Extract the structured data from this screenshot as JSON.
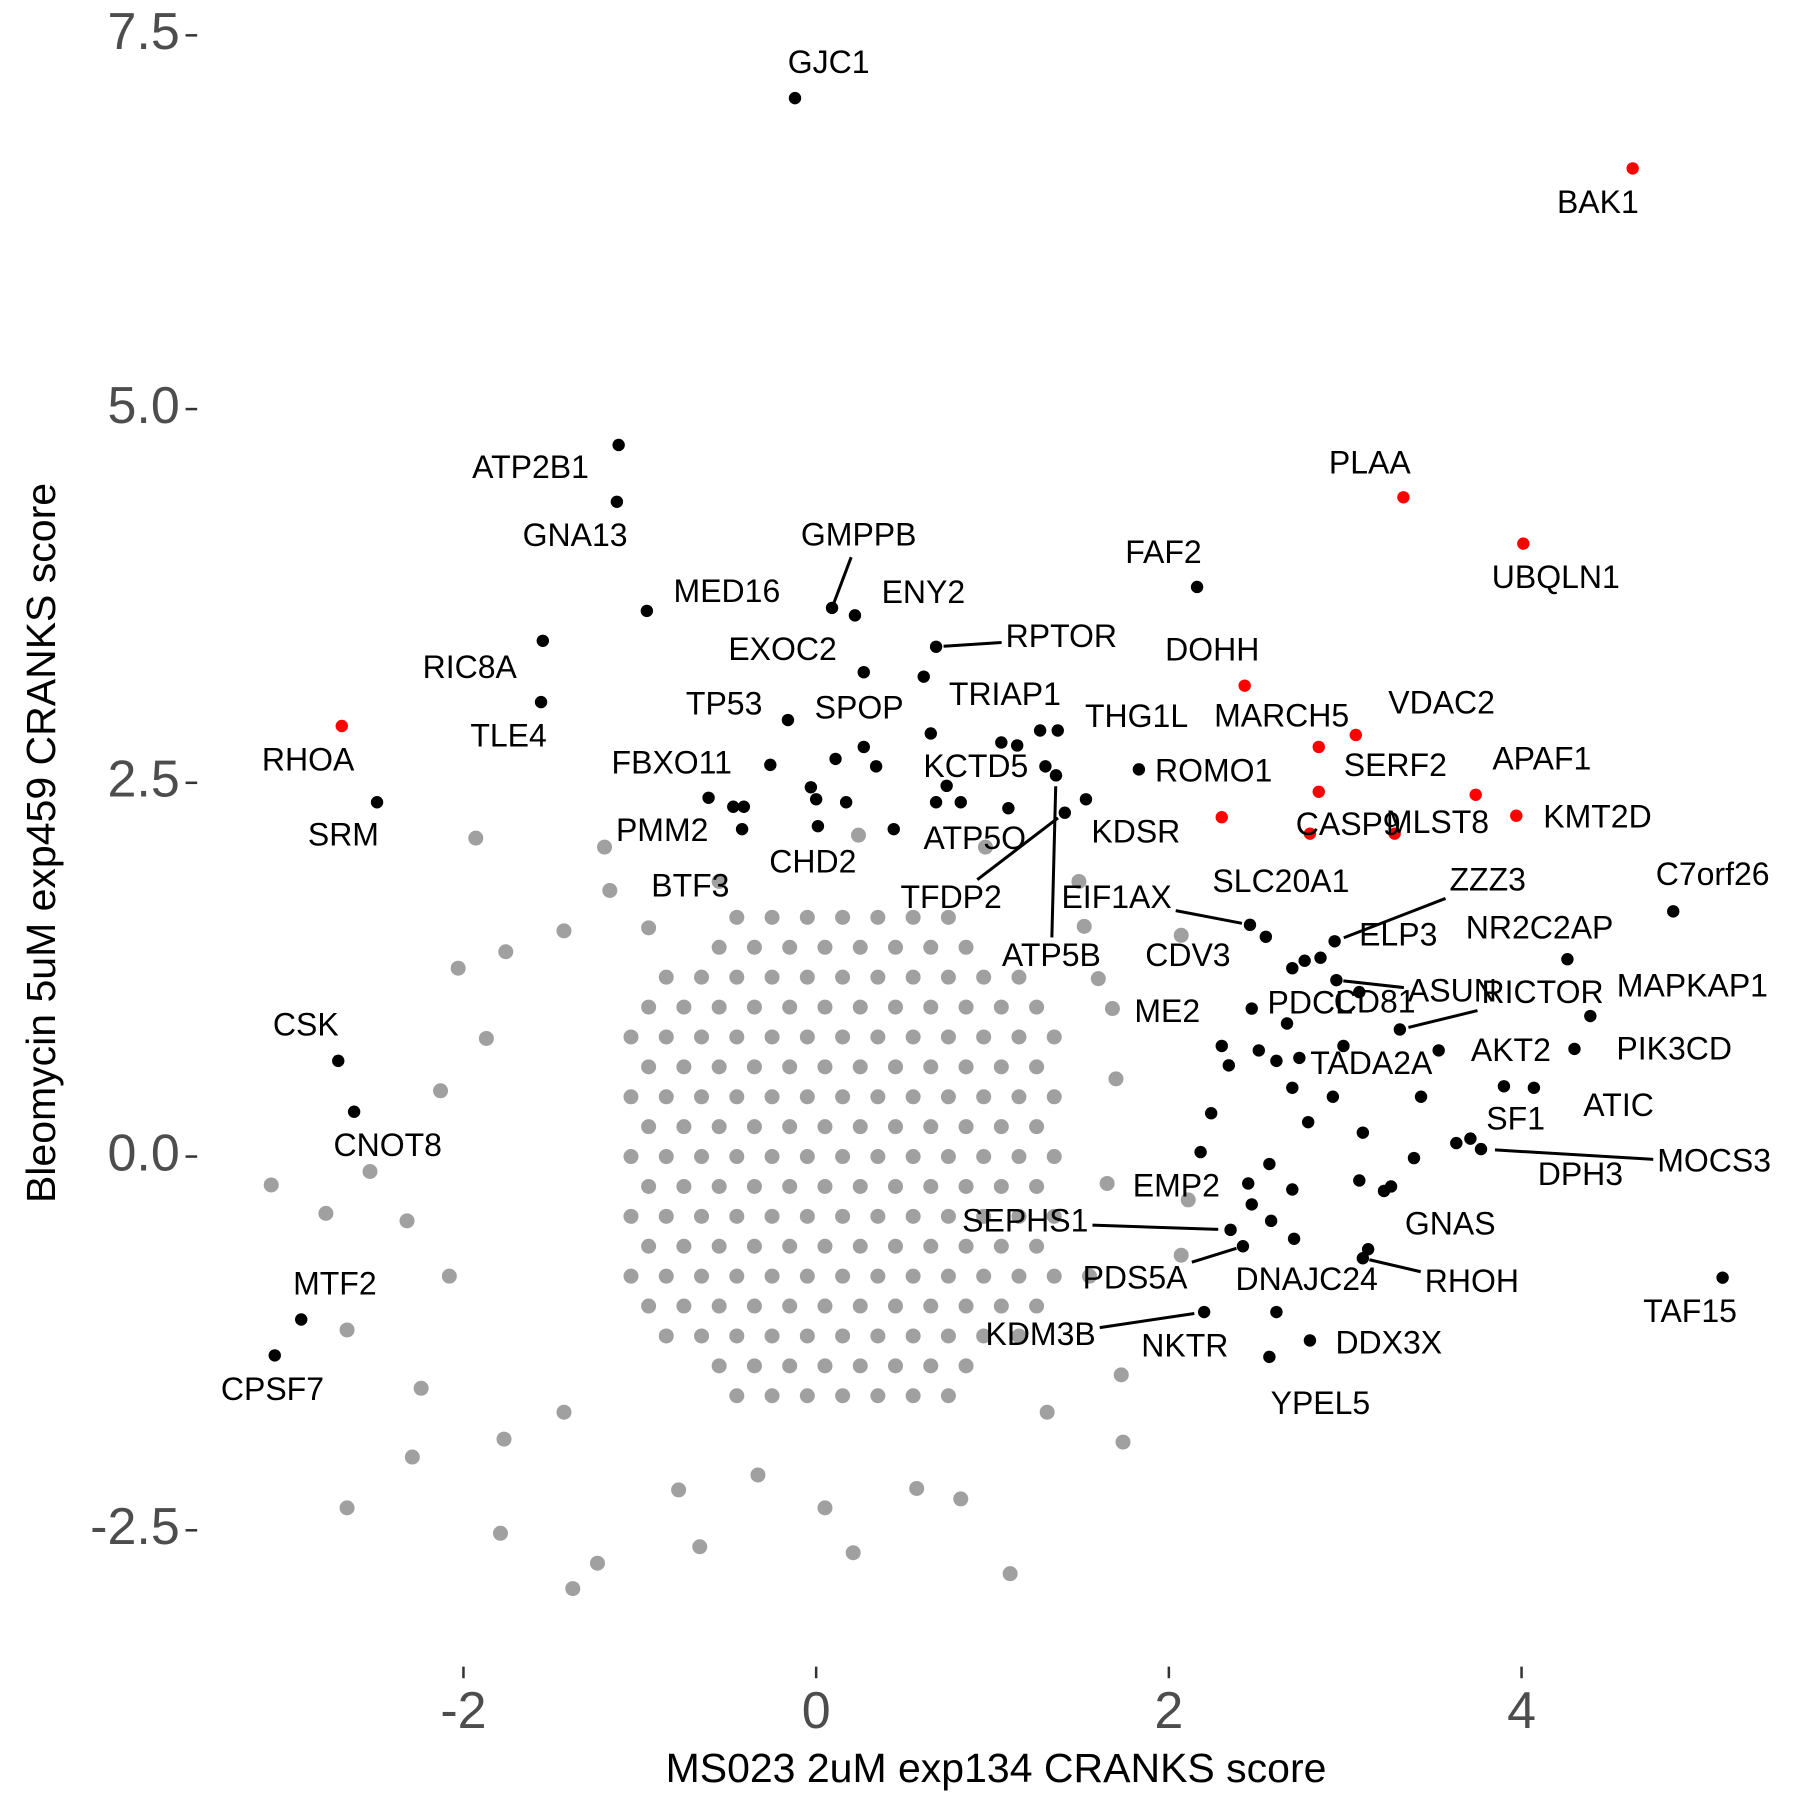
{
  "chart_data": {
    "type": "scatter",
    "x_label": "MS023 2uM exp134 CRANKS score",
    "y_label": "Bleomycin 5uM exp459 CRANKS score",
    "xlim": [
      -3.51,
      5.5
    ],
    "ylim": [
      -3.28,
      7.62
    ],
    "xticks": [
      -2,
      0,
      2,
      4
    ],
    "yticks": [
      -2.5,
      {
        "value": 0,
        "label": "0.0"
      },
      2.5,
      {
        "value": 5,
        "label": "5.0"
      },
      7.5
    ],
    "grid": false,
    "series": [
      {
        "color": "#a0a0a0",
        "x": [
          -0.45,
          -0.25,
          -0.05,
          0.15,
          0.35,
          0.55,
          0.75,
          -0.55,
          -0.35,
          -0.15,
          0.05,
          0.25,
          0.45,
          0.65,
          0.85,
          -0.85,
          -0.65,
          -0.45,
          -0.25,
          -0.05,
          0.15,
          0.35,
          0.55,
          0.75,
          0.95,
          1.15,
          -0.95,
          -0.75,
          -0.55,
          -0.35,
          -0.15,
          0.05,
          0.25,
          0.45,
          0.65,
          0.85,
          1.05,
          1.25,
          -1.05,
          -0.85,
          -0.65,
          -0.45,
          -0.25,
          -0.05,
          0.15,
          0.35,
          0.55,
          0.75,
          0.95,
          1.15,
          1.35,
          -0.95,
          -0.75,
          -0.55,
          -0.35,
          -0.15,
          0.05,
          0.25,
          0.45,
          0.65,
          0.85,
          1.05,
          1.25,
          -1.05,
          -0.85,
          -0.65,
          -0.45,
          -0.25,
          -0.05,
          0.15,
          0.35,
          0.55,
          0.75,
          0.95,
          1.15,
          1.35,
          -0.95,
          -0.75,
          -0.55,
          -0.35,
          -0.15,
          0.05,
          0.25,
          0.45,
          0.65,
          0.85,
          1.05,
          1.25,
          -1.05,
          -0.85,
          -0.65,
          -0.45,
          -0.25,
          -0.05,
          0.15,
          0.35,
          0.55,
          0.75,
          0.95,
          1.15,
          1.35,
          -0.95,
          -0.75,
          -0.55,
          -0.35,
          -0.15,
          0.05,
          0.25,
          0.45,
          0.65,
          0.85,
          1.05,
          1.25,
          -1.05,
          -0.85,
          -0.65,
          -0.45,
          -0.25,
          -0.05,
          0.15,
          0.35,
          0.55,
          0.75,
          0.95,
          1.15,
          1.35,
          -0.95,
          -0.75,
          -0.55,
          -0.35,
          -0.15,
          0.05,
          0.25,
          0.45,
          0.65,
          0.85,
          1.05,
          1.25,
          -1.05,
          -0.85,
          -0.65,
          -0.45,
          -0.25,
          -0.05,
          0.15,
          0.35,
          0.55,
          0.75,
          0.95,
          1.15,
          1.35,
          -0.95,
          -0.75,
          -0.55,
          -0.35,
          -0.15,
          0.05,
          0.25,
          0.45,
          0.65,
          0.85,
          1.05,
          1.25,
          -0.85,
          -0.65,
          -0.45,
          -0.25,
          -0.05,
          0.15,
          0.35,
          0.55,
          0.75,
          0.95,
          1.15,
          -0.55,
          -0.35,
          -0.15,
          0.05,
          0.25,
          0.45,
          0.65,
          0.85,
          -0.45,
          -0.25,
          -0.05,
          0.15,
          0.35,
          0.55,
          0.75,
          -1.93,
          -1.17,
          -1.43,
          -1.76,
          -2.03,
          -3.09,
          -2.78,
          -2.53,
          -2.66,
          -2.66,
          -2.29,
          -1.79,
          -1.38,
          -1.24,
          -0.66,
          0.21,
          1.1,
          0.82,
          1.74,
          1.73,
          2.07,
          2.11,
          2.07,
          1.6,
          1.52,
          -2.24,
          -2.08,
          -2.32,
          -2.13,
          -1.87,
          -1.43,
          -1.77,
          -0.78,
          -0.33,
          0.05,
          0.57,
          1.31,
          1.55,
          1.65,
          1.7,
          1.68,
          1.49,
          0.96,
          0.24,
          -0.55,
          -0.95,
          -1.2
        ],
        "values": [
          1.6,
          1.6,
          1.6,
          1.6,
          1.6,
          1.6,
          1.6,
          1.4,
          1.4,
          1.4,
          1.4,
          1.4,
          1.4,
          1.4,
          1.4,
          1.2,
          1.2,
          1.2,
          1.2,
          1.2,
          1.2,
          1.2,
          1.2,
          1.2,
          1.2,
          1.2,
          1.0,
          1.0,
          1.0,
          1.0,
          1.0,
          1.0,
          1.0,
          1.0,
          1.0,
          1.0,
          1.0,
          1.0,
          0.8,
          0.8,
          0.8,
          0.8,
          0.8,
          0.8,
          0.8,
          0.8,
          0.8,
          0.8,
          0.8,
          0.8,
          0.8,
          0.6,
          0.6,
          0.6,
          0.6,
          0.6,
          0.6,
          0.6,
          0.6,
          0.6,
          0.6,
          0.6,
          0.6,
          0.4,
          0.4,
          0.4,
          0.4,
          0.4,
          0.4,
          0.4,
          0.4,
          0.4,
          0.4,
          0.4,
          0.4,
          0.4,
          0.2,
          0.2,
          0.2,
          0.2,
          0.2,
          0.2,
          0.2,
          0.2,
          0.2,
          0.2,
          0.2,
          0.2,
          0,
          0,
          0,
          0,
          0,
          0,
          0,
          0,
          0,
          0,
          0,
          0,
          0,
          -0.2,
          -0.2,
          -0.2,
          -0.2,
          -0.2,
          -0.2,
          -0.2,
          -0.2,
          -0.2,
          -0.2,
          -0.2,
          -0.2,
          -0.4,
          -0.4,
          -0.4,
          -0.4,
          -0.4,
          -0.4,
          -0.4,
          -0.4,
          -0.4,
          -0.4,
          -0.4,
          -0.4,
          -0.4,
          -0.6,
          -0.6,
          -0.6,
          -0.6,
          -0.6,
          -0.6,
          -0.6,
          -0.6,
          -0.6,
          -0.6,
          -0.6,
          -0.6,
          -0.8,
          -0.8,
          -0.8,
          -0.8,
          -0.8,
          -0.8,
          -0.8,
          -0.8,
          -0.8,
          -0.8,
          -0.8,
          -0.8,
          -0.8,
          -1.0,
          -1.0,
          -1.0,
          -1.0,
          -1.0,
          -1.0,
          -1.0,
          -1.0,
          -1.0,
          -1.0,
          -1.0,
          -1.0,
          -1.2,
          -1.2,
          -1.2,
          -1.2,
          -1.2,
          -1.2,
          -1.2,
          -1.2,
          -1.2,
          -1.2,
          -1.2,
          -1.4,
          -1.4,
          -1.4,
          -1.4,
          -1.4,
          -1.4,
          -1.4,
          -1.4,
          -1.6,
          -1.6,
          -1.6,
          -1.6,
          -1.6,
          -1.6,
          -1.6,
          2.13,
          1.78,
          1.51,
          1.37,
          1.26,
          -0.19,
          -0.38,
          -0.1,
          -1.16,
          -2.35,
          -2.01,
          -2.52,
          -2.89,
          -2.72,
          -2.61,
          -2.65,
          -2.79,
          -2.29,
          -1.91,
          -1.46,
          -0.66,
          -0.29,
          1.48,
          1.19,
          1.54,
          -1.55,
          -0.8,
          -0.43,
          0.44,
          0.79,
          -1.71,
          -1.89,
          -2.23,
          -2.13,
          -2.35,
          -2.22,
          -1.71,
          -0.8,
          -0.18,
          0.52,
          0.99,
          1.84,
          2.07,
          2.15,
          1.84,
          1.53,
          2.07
        ]
      },
      {
        "color": "#000000",
        "x": [
          -0.12,
          -1.12,
          -1.13,
          2.16,
          -0.96,
          0.09,
          0.22,
          -1.55,
          0.68,
          0.27,
          0.61,
          -1.56,
          -0.16,
          0.27,
          1.83,
          1.3,
          -0.26,
          -2.49,
          -0.61,
          1.53,
          1.09,
          -0.42,
          -0.47,
          1.41,
          1.36,
          2.46,
          2.55,
          2.94,
          2.86,
          4.26,
          4.86,
          2.7,
          2.95,
          2.67,
          2.47,
          3.31,
          4.39,
          2.3,
          2.99,
          3.9,
          4.3,
          4.07,
          3.71,
          3.77,
          3.63,
          -2.71,
          -2.62,
          2.45,
          2.35,
          3.26,
          2.42,
          3.13,
          3.1,
          5.14,
          -2.92,
          -3.07,
          2.2,
          2.61,
          2.8,
          2.57,
          2.18,
          2.24,
          2.47,
          2.58,
          2.71,
          2.7,
          2.57,
          3.08,
          3.22,
          3.39,
          3.1,
          2.93,
          2.79,
          3.43,
          3.53,
          2.74,
          2.61,
          2.51,
          2.34,
          2.7,
          2.77,
          3.08,
          1.05,
          1.14,
          1.27,
          1.37,
          0.65,
          0.82,
          0.68,
          0.74,
          0.44,
          0.17,
          0,
          0.01,
          0.11,
          0.34,
          -0.03,
          -0.41
        ],
        "values": [
          7.08,
          4.76,
          4.38,
          3.81,
          3.65,
          3.67,
          3.62,
          3.45,
          3.41,
          3.24,
          3.21,
          3.04,
          2.92,
          2.74,
          2.59,
          2.61,
          2.62,
          2.37,
          2.4,
          2.39,
          2.33,
          2.19,
          2.34,
          2.3,
          2.55,
          1.55,
          1.47,
          1.44,
          1.33,
          1.32,
          1.64,
          1.26,
          1.18,
          0.89,
          0.99,
          0.85,
          0.94,
          0.74,
          0.74,
          0.47,
          0.72,
          0.46,
          0.12,
          0.05,
          0.09,
          0.64,
          0.3,
          -0.18,
          -0.49,
          -0.2,
          -0.6,
          -0.62,
          -0.68,
          -0.81,
          -1.09,
          -1.33,
          -1.04,
          -1.04,
          -1.23,
          -1.34,
          0.03,
          0.29,
          -0.32,
          -0.43,
          -0.55,
          -0.22,
          -0.05,
          -0.16,
          -0.23,
          -0.01,
          0.16,
          0.4,
          0.23,
          0.4,
          0.71,
          0.66,
          0.64,
          0.71,
          0.61,
          0.46,
          1.31,
          1.1,
          2.77,
          2.75,
          2.85,
          2.85,
          2.83,
          2.37,
          2.37,
          2.48,
          2.19,
          2.37,
          2.39,
          2.21,
          2.66,
          2.61,
          2.47,
          2.34
        ],
        "labels": [
          "GJC1",
          "ATP2B1",
          "GNA13",
          "FAF2",
          "MED16",
          "GMPPB",
          "ENY2",
          "RIC8A",
          "RPTOR",
          "EXOC2",
          "TRIAP1",
          "TLE4",
          "TP53",
          "SPOP",
          "THG1L",
          "KCTD5",
          "FBXO11",
          "SRM",
          "PMM2",
          "KDSR",
          "ATP5O",
          "CHD2",
          "BTF3",
          "TFDP2",
          "ATP5B",
          "EIF1AX",
          "SLC20A1",
          "ZZZ3",
          "ELP3",
          "NR2C2AP",
          "C7orf26",
          "CDV3",
          "ASUN",
          "PDCL",
          "CD81",
          "RICTOR",
          "MAPKAP1",
          "ME2",
          "TADA2A",
          "AKT2",
          "PIK3CD",
          "ATIC",
          "SF1",
          "MOCS3",
          "DPH3",
          "CSK",
          "CNOT8",
          "EMP2",
          "SEPHS1",
          "GNAS",
          "PDS5A",
          "DNAJC24",
          "RHOH",
          "TAF15",
          "MTF2",
          "CPSF7",
          "KDM3B",
          "NKTR",
          "DDX3X",
          "YPEL5",
          null,
          null,
          null,
          null,
          null,
          null,
          null,
          null,
          null,
          null,
          null,
          null,
          null,
          null,
          null,
          null,
          null,
          null,
          null,
          null,
          null,
          null,
          null,
          null,
          null,
          null,
          null,
          null,
          null,
          null,
          null,
          null,
          null,
          null,
          null,
          null,
          null,
          null
        ]
      },
      {
        "color": "#ff0000",
        "x": [
          4.63,
          3.33,
          4.01,
          2.43,
          -2.69,
          2.85,
          3.06,
          2.3,
          2.85,
          3.74,
          3.97,
          2.8,
          3.28
        ],
        "values": [
          6.61,
          4.41,
          4.1,
          3.15,
          2.88,
          2.74,
          2.82,
          2.27,
          2.44,
          2.42,
          2.28,
          2.16,
          2.16
        ],
        "labels": [
          "BAK1",
          "PLAA",
          "UBQLN1",
          "DOHH",
          "RHOA",
          "MARCH5",
          "VDAC2",
          "ROMO1",
          "SERF2",
          "APAF1",
          "KMT2D",
          "CASP9",
          "MLST8"
        ]
      }
    ]
  }
}
